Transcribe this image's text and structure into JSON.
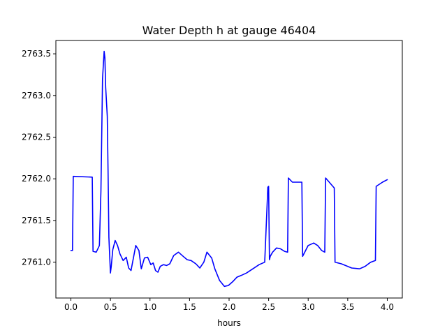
{
  "chart_data": {
    "type": "line",
    "title": "Water Depth h at gauge 46404",
    "xlabel": "hours",
    "ylabel": "",
    "xlim": [
      -0.19,
      4.19
    ],
    "ylim": [
      2760.57,
      2763.66
    ],
    "xticks": [
      "0.0",
      "0.5",
      "1.0",
      "1.5",
      "2.0",
      "2.5",
      "3.0",
      "3.5",
      "4.0"
    ],
    "yticks": [
      "2761.0",
      "2761.5",
      "2762.0",
      "2762.5",
      "2763.0",
      "2763.5"
    ],
    "grid": false,
    "line_color": "#0000ff",
    "series": [
      {
        "x": [
          0.0,
          0.02,
          0.03,
          0.27,
          0.28,
          0.32,
          0.36,
          0.38,
          0.4,
          0.42,
          0.43,
          0.44,
          0.46,
          0.47,
          0.48,
          0.5,
          0.51,
          0.53,
          0.56,
          0.59,
          0.62,
          0.66,
          0.7,
          0.73,
          0.76,
          0.79,
          0.82,
          0.86,
          0.89,
          0.93,
          0.97,
          1.01,
          1.04,
          1.07,
          1.1,
          1.13,
          1.17,
          1.21,
          1.25,
          1.3,
          1.36,
          1.42,
          1.47,
          1.52,
          1.58,
          1.63,
          1.68,
          1.72,
          1.78,
          1.82,
          1.88,
          1.94,
          1.99,
          2.05,
          2.1,
          2.15,
          2.22,
          2.3,
          2.38,
          2.45,
          2.49,
          2.5,
          2.51,
          2.52,
          2.55,
          2.6,
          2.65,
          2.7,
          2.74,
          2.75,
          2.8,
          2.92,
          2.93,
          3.0,
          3.07,
          3.12,
          3.17,
          3.21,
          3.22,
          3.33,
          3.34,
          3.42,
          3.55,
          3.65,
          3.72,
          3.79,
          3.85,
          3.86,
          3.94,
          4.0
        ],
        "y": [
          2761.14,
          2761.14,
          2762.03,
          2762.02,
          2761.13,
          2761.12,
          2761.2,
          2761.85,
          2763.2,
          2763.53,
          2763.45,
          2763.1,
          2762.75,
          2762.1,
          2761.3,
          2760.87,
          2760.95,
          2761.15,
          2761.26,
          2761.2,
          2761.1,
          2761.02,
          2761.06,
          2760.93,
          2760.9,
          2761.05,
          2761.2,
          2761.14,
          2760.92,
          2761.05,
          2761.06,
          2760.97,
          2760.99,
          2760.9,
          2760.88,
          2760.95,
          2760.97,
          2760.96,
          2760.98,
          2761.08,
          2761.12,
          2761.07,
          2761.03,
          2761.02,
          2760.98,
          2760.93,
          2761.0,
          2761.12,
          2761.05,
          2760.92,
          2760.78,
          2760.71,
          2760.72,
          2760.77,
          2760.82,
          2760.84,
          2760.87,
          2760.92,
          2760.97,
          2761.0,
          2761.9,
          2761.91,
          2761.03,
          2761.07,
          2761.12,
          2761.17,
          2761.16,
          2761.13,
          2761.12,
          2762.01,
          2761.96,
          2761.96,
          2761.07,
          2761.2,
          2761.23,
          2761.2,
          2761.14,
          2761.12,
          2762.01,
          2761.89,
          2761.0,
          2760.98,
          2760.93,
          2760.92,
          2760.95,
          2761.0,
          2761.02,
          2761.91,
          2761.96,
          2761.99
        ]
      }
    ]
  }
}
